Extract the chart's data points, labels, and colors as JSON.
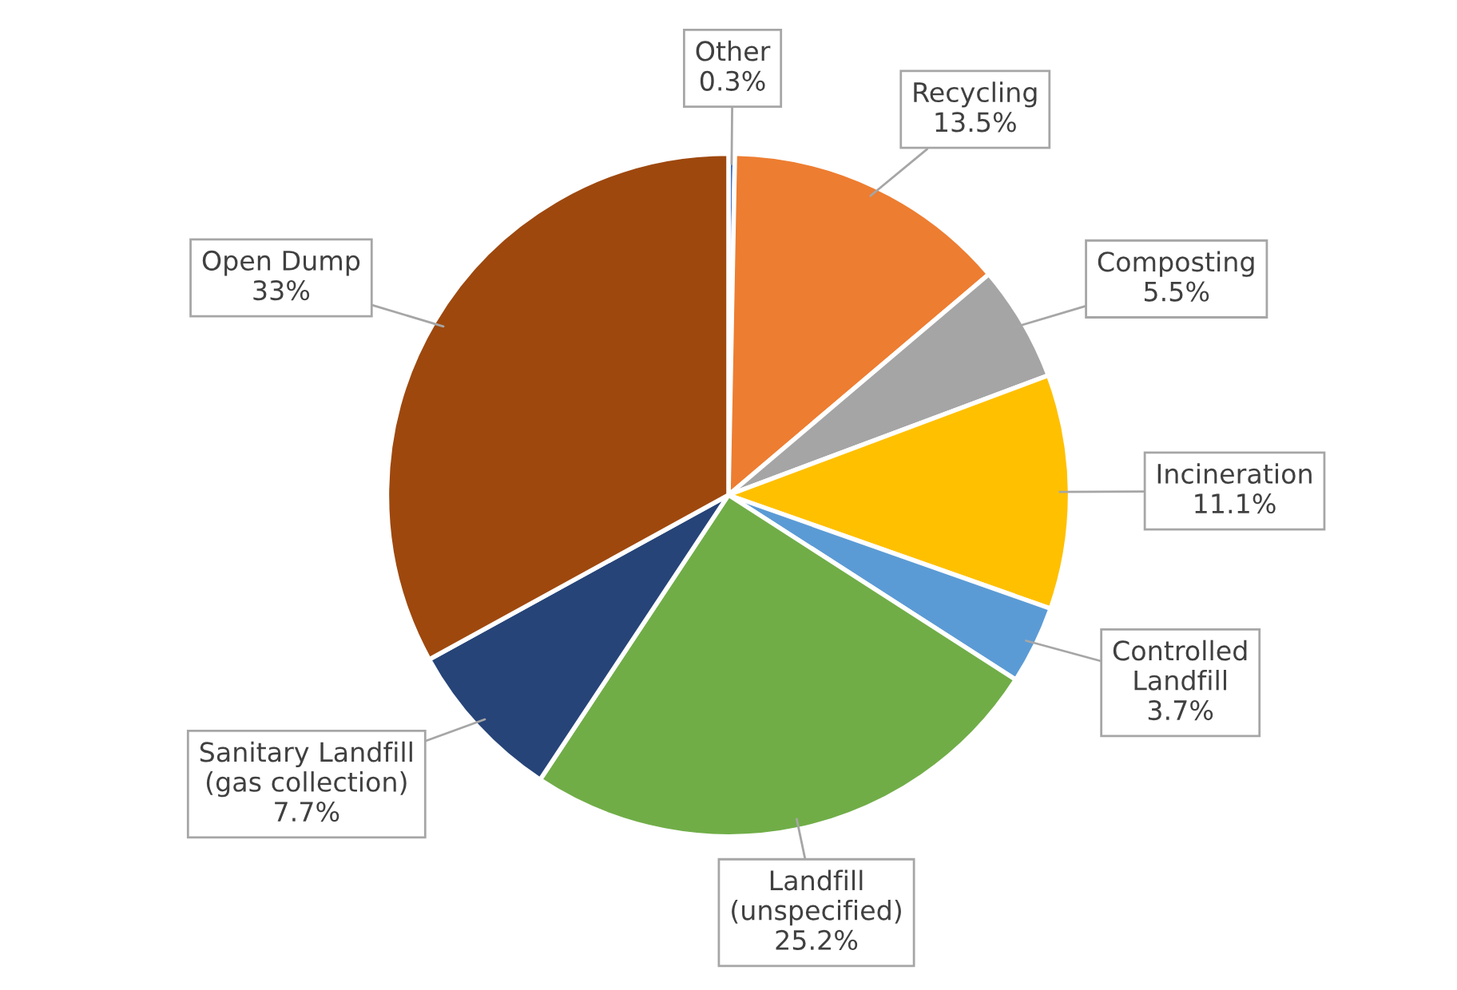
{
  "chart_data": {
    "type": "pie",
    "categories": [
      "Other",
      "Recycling",
      "Composting",
      "Incineration",
      "Controlled\nLandfill",
      "Landfill\n(unspecified)",
      "Sanitary Landfill\n(gas collection)",
      "Open Dump"
    ],
    "values": [
      0.3,
      13.5,
      5.5,
      11.1,
      3.7,
      25.2,
      7.7,
      33
    ],
    "value_labels": [
      "0.3%",
      "13.5%",
      "5.5%",
      "11.1%",
      "3.7%",
      "25.2%",
      "7.7%",
      "33%"
    ],
    "colors": [
      "#4472c4",
      "#ed7d31",
      "#a5a5a5",
      "#ffc000",
      "#5b9bd5",
      "#70ad47",
      "#264478",
      "#9e480e"
    ],
    "legend": false
  }
}
